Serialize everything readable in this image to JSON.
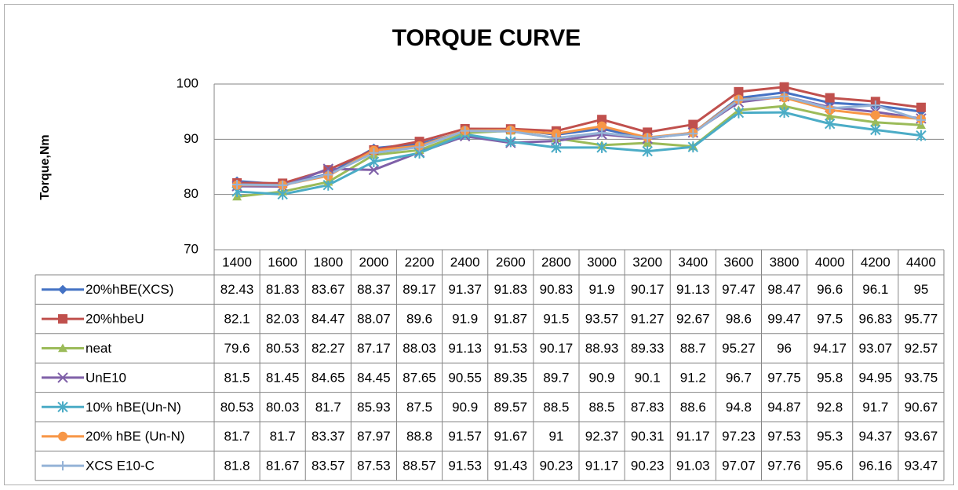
{
  "chart_data": {
    "type": "line",
    "title": "TORQUE CURVE",
    "y_label": "Torque,Nm",
    "categories": [
      "1400",
      "1600",
      "1800",
      "2000",
      "2200",
      "2400",
      "2600",
      "2800",
      "3000",
      "3200",
      "3400",
      "3600",
      "3800",
      "4000",
      "4200",
      "4400"
    ],
    "ylim": [
      70,
      100
    ],
    "yticks": [
      70,
      80,
      90,
      100
    ],
    "grid": true,
    "legend": "data-table",
    "series": [
      {
        "name": "20%hBE(XCS)",
        "color": "#4472c4",
        "marker": "diamond",
        "values": [
          82.43,
          81.83,
          83.67,
          88.37,
          89.17,
          91.37,
          91.83,
          90.83,
          91.9,
          90.17,
          91.13,
          97.47,
          98.47,
          96.6,
          96.1,
          95
        ]
      },
      {
        "name": "20%hbeU",
        "color": "#c0504d",
        "marker": "square",
        "values": [
          82.1,
          82.03,
          84.47,
          88.07,
          89.6,
          91.9,
          91.87,
          91.5,
          93.57,
          91.27,
          92.67,
          98.6,
          99.47,
          97.5,
          96.83,
          95.77
        ]
      },
      {
        "name": "neat",
        "color": "#9bbb59",
        "marker": "triangle",
        "values": [
          79.6,
          80.53,
          82.27,
          87.17,
          88.03,
          91.13,
          91.53,
          90.17,
          88.93,
          89.33,
          88.7,
          95.27,
          96,
          94.17,
          93.07,
          92.57
        ]
      },
      {
        "name": "UnE10",
        "color": "#7f60a8",
        "marker": "x",
        "values": [
          81.5,
          81.45,
          84.65,
          84.45,
          87.65,
          90.55,
          89.35,
          89.7,
          90.9,
          90.1,
          91.2,
          96.7,
          97.75,
          95.8,
          94.95,
          93.75
        ]
      },
      {
        "name": "10% hBE(Un-N)",
        "color": "#4bacc6",
        "marker": "star",
        "values": [
          80.53,
          80.03,
          81.7,
          85.93,
          87.5,
          90.9,
          89.57,
          88.5,
          88.5,
          87.83,
          88.6,
          94.8,
          94.87,
          92.8,
          91.7,
          90.67
        ]
      },
      {
        "name": "20% hBE (Un-N)",
        "color": "#f79646",
        "marker": "circle",
        "values": [
          81.7,
          81.7,
          83.37,
          87.97,
          88.8,
          91.57,
          91.67,
          91,
          92.37,
          90.31,
          91.17,
          97.23,
          97.53,
          95.3,
          94.37,
          93.67
        ]
      },
      {
        "name": "XCS E10-C",
        "color": "#95b3d7",
        "marker": "plus",
        "values": [
          81.8,
          81.67,
          83.57,
          87.53,
          88.57,
          91.53,
          91.43,
          90.23,
          91.17,
          90.23,
          91.03,
          97.07,
          97.76,
          95.6,
          96.16,
          93.47
        ]
      }
    ]
  }
}
